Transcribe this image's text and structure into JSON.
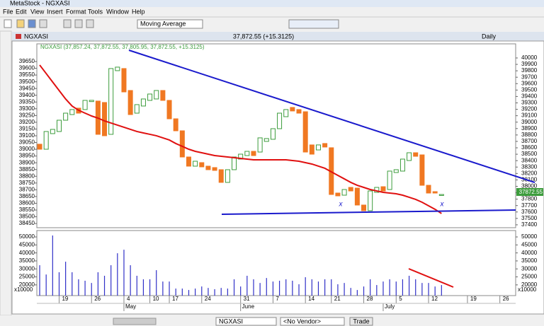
{
  "window": {
    "title": "MetaStock - NGXASI",
    "menu": [
      "File",
      "Edit",
      "View",
      "Insert",
      "Format",
      "Tools",
      "Window",
      "Help"
    ],
    "indicator": "Moving Average",
    "symbol_box": "NGXASI",
    "vendor_box": "<No Vendor>",
    "trade_button": "Trade"
  },
  "chart_window": {
    "symbol": "NGXASI",
    "quote": "37,872.55 (+15.3125)",
    "period": "Daily",
    "legend": "NGXASI (37,857.24, 37,872.55, 37,805.95, 37,872.55, +15.3125)",
    "last_price": "37872.55",
    "volume_unit": "x10000",
    "annotations": [
      "x",
      "x"
    ]
  },
  "chart_data": [
    {
      "type": "candlestick",
      "up_color": "#3c9c3c",
      "down_color": "#f07822",
      "open": [
        38656,
        38578,
        38821,
        38854,
        39030,
        39118,
        39218,
        39196,
        39320,
        39328,
        39306,
        38810,
        39802,
        39835,
        39493,
        39140,
        39251,
        39339,
        39361,
        39493,
        39339,
        39052,
        38865,
        38457,
        38314,
        38369,
        38314,
        38292,
        38259,
        38061,
        38259,
        38424,
        38479,
        38545,
        38534,
        38700,
        38733,
        38898,
        39085,
        39229,
        39196,
        39162,
        38645,
        38567,
        38667,
        38601,
        37895,
        37862,
        37983,
        37972,
        37708,
        37620,
        37906,
        37994,
        37950,
        38215,
        38237,
        38402,
        38523,
        38490,
        38016,
        37917,
        37857.24
      ],
      "close": [
        38578,
        38854,
        38887,
        39030,
        39140,
        39196,
        39140,
        39339,
        39340,
        38810,
        38788,
        39835,
        39857,
        39471,
        39118,
        39273,
        39361,
        39438,
        39493,
        39339,
        39052,
        38865,
        38457,
        38314,
        38391,
        38303,
        38259,
        38248,
        38061,
        38259,
        38457,
        38501,
        38545,
        38479,
        38755,
        38744,
        38898,
        39140,
        39196,
        39174,
        39140,
        38534,
        38501,
        38645,
        38612,
        37873,
        37851,
        37950,
        37928,
        37708,
        37620,
        37928,
        37983,
        37928,
        38237,
        38259,
        38424,
        38523,
        38468,
        38016,
        37895,
        37895,
        37872.55
      ],
      "moving_average": {
        "color": "#e01010",
        "values": [
          39890,
          39758,
          39625,
          39493,
          39361,
          39251,
          39185,
          39140,
          39096,
          39063,
          39019,
          38986,
          38953,
          38920,
          38887,
          38854,
          38832,
          38810,
          38788,
          38755,
          38722,
          38667,
          38623,
          38578,
          38545,
          38523,
          38501,
          38479,
          38468,
          38457,
          38446,
          38435,
          38424,
          38413,
          38413,
          38413,
          38413,
          38413,
          38413,
          38402,
          38391,
          38369,
          38347,
          38314,
          38281,
          38226,
          38171,
          38116,
          38061,
          38016,
          37983,
          37950,
          37928,
          37906,
          37895,
          37884,
          37862,
          37829,
          37796,
          37752,
          37697,
          37642,
          37576
        ]
      },
      "xlim": [
        -0.44,
        73.44
      ],
      "xticks": [
        {
          "value": 3,
          "label": "19"
        },
        {
          "value": 8,
          "label": "26"
        },
        {
          "value": 13,
          "label": "4"
        },
        {
          "value": 17,
          "label": "10"
        },
        {
          "value": 20,
          "label": "17"
        },
        {
          "value": 25,
          "label": "24"
        },
        {
          "value": 31,
          "label": "31"
        },
        {
          "value": 36,
          "label": "7"
        },
        {
          "value": 41,
          "label": "14"
        },
        {
          "value": 45,
          "label": "21"
        },
        {
          "value": 50,
          "label": "28"
        },
        {
          "value": 55,
          "label": "5"
        },
        {
          "value": 60,
          "label": "12"
        },
        {
          "value": 66,
          "label": "19"
        },
        {
          "value": 71,
          "label": "26"
        }
      ],
      "month_ticks": [
        {
          "value": 13,
          "label": "May"
        },
        {
          "value": 31,
          "label": "June"
        },
        {
          "value": 53,
          "label": "July"
        }
      ],
      "ylim": [
        37355,
        40220
      ],
      "yticks": [
        40000,
        39900,
        39800,
        39700,
        39600,
        39500,
        39400,
        39300,
        39200,
        39100,
        39000,
        38900,
        38800,
        38700,
        38600,
        38500,
        38400,
        38300,
        38200,
        38100,
        38000,
        37900,
        37800,
        37700,
        37600,
        37500,
        37400
      ],
      "y2lim": [
        38419,
        39781
      ],
      "y2ticks": [
        39650,
        39600,
        39550,
        39500,
        39450,
        39400,
        39350,
        39300,
        39250,
        39200,
        39150,
        39100,
        39050,
        39000,
        38950,
        38900,
        38850,
        38800,
        38750,
        38700,
        38650,
        38600,
        38550,
        38500,
        38450
      ]
    },
    {
      "type": "bar",
      "color": "#3030c8",
      "values": [
        32300,
        26500,
        50900,
        27900,
        34500,
        27900,
        23500,
        22600,
        21200,
        27900,
        25700,
        32300,
        39800,
        42000,
        32300,
        25700,
        23500,
        23500,
        29200,
        22100,
        22100,
        17700,
        17700,
        16800,
        17700,
        19000,
        18100,
        17300,
        18100,
        17700,
        23500,
        19000,
        25700,
        23500,
        21200,
        24300,
        22100,
        22600,
        23500,
        22600,
        20400,
        24800,
        23500,
        22100,
        23500,
        23500,
        20400,
        21200,
        18100,
        16800,
        19000,
        23500,
        19900,
        22100,
        23500,
        22100,
        23500,
        25700,
        23500,
        21200,
        21200,
        19000,
        19900
      ],
      "ylim": [
        13300,
        54000
      ],
      "yticks": [
        50000,
        45000,
        40000,
        35000,
        30000,
        25000,
        20000
      ]
    }
  ]
}
